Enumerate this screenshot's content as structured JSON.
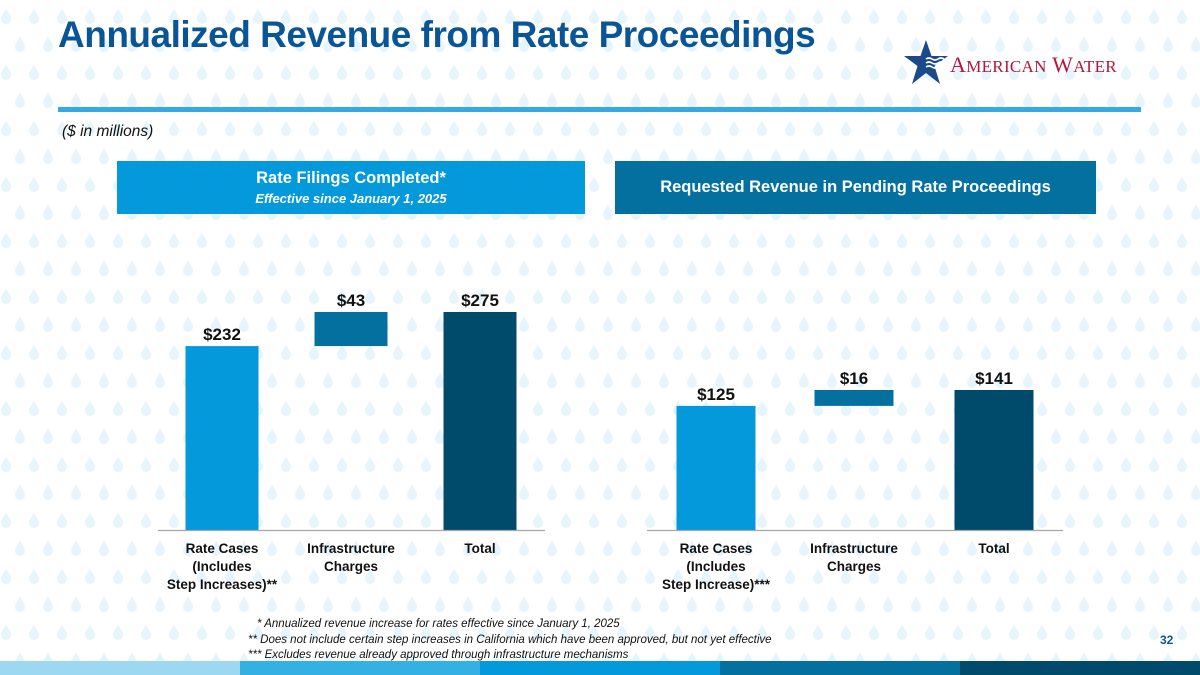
{
  "slide": {
    "title": "Annualized Revenue from Rate Proceedings",
    "units_note": "($ in millions)",
    "page_number": "32",
    "logo": {
      "name_first": "A",
      "name_first_rest": "MERICAN",
      "name_second": "W",
      "name_second_rest": "ATER",
      "star_color": "#1b4a8c",
      "text_color": "#b5173a"
    },
    "colors": {
      "title": "#0a5596",
      "rule": "#35a9e0",
      "header_left": "#0499db",
      "header_right": "#03709f"
    },
    "footer_bar_colors": [
      "#9dd8f2",
      "#35b0e3",
      "#0499db",
      "#03709f",
      "#004b6c"
    ],
    "footnotes": [
      "* Annualized revenue increase for rates effective since January 1, 2025",
      "** Does not include certain step increases in California which have been approved, but not yet effective",
      "*** Excludes revenue already approved through infrastructure mechanisms"
    ]
  },
  "panels": {
    "left": {
      "header": "Rate Filings Completed*",
      "subheader": "Effective since January 1, 2025"
    },
    "right": {
      "header": "Requested Revenue in Pending Rate Proceedings"
    }
  },
  "chart_data": [
    {
      "type": "bar",
      "subtype": "waterfall",
      "title": "Rate Filings Completed*",
      "subtitle": "Effective since January 1, 2025",
      "categories": [
        "Rate Cases\n(Includes\nStep Increases)**",
        "Infrastructure\nCharges",
        "Total"
      ],
      "values": [
        232,
        43,
        275
      ],
      "bar_base": [
        0,
        232,
        0
      ],
      "data_labels": [
        "$232",
        "$43",
        "$275"
      ],
      "colors": [
        "#0499db",
        "#03709f",
        "#004b6c"
      ],
      "xlabel": "",
      "ylabel": "",
      "ylim": [
        0,
        275
      ],
      "grid": false,
      "legend": "none",
      "units": "$ in millions"
    },
    {
      "type": "bar",
      "subtype": "waterfall",
      "title": "Requested Revenue in Pending Rate Proceedings",
      "categories": [
        "Rate Cases\n(Includes\nStep Increase)***",
        "Infrastructure\nCharges",
        "Total"
      ],
      "values": [
        125,
        16,
        141
      ],
      "bar_base": [
        0,
        125,
        0
      ],
      "data_labels": [
        "$125",
        "$16",
        "$141"
      ],
      "colors": [
        "#0499db",
        "#03709f",
        "#004b6c"
      ],
      "xlabel": "",
      "ylabel": "",
      "ylim": [
        0,
        141
      ],
      "grid": false,
      "legend": "none",
      "units": "$ in millions"
    }
  ]
}
